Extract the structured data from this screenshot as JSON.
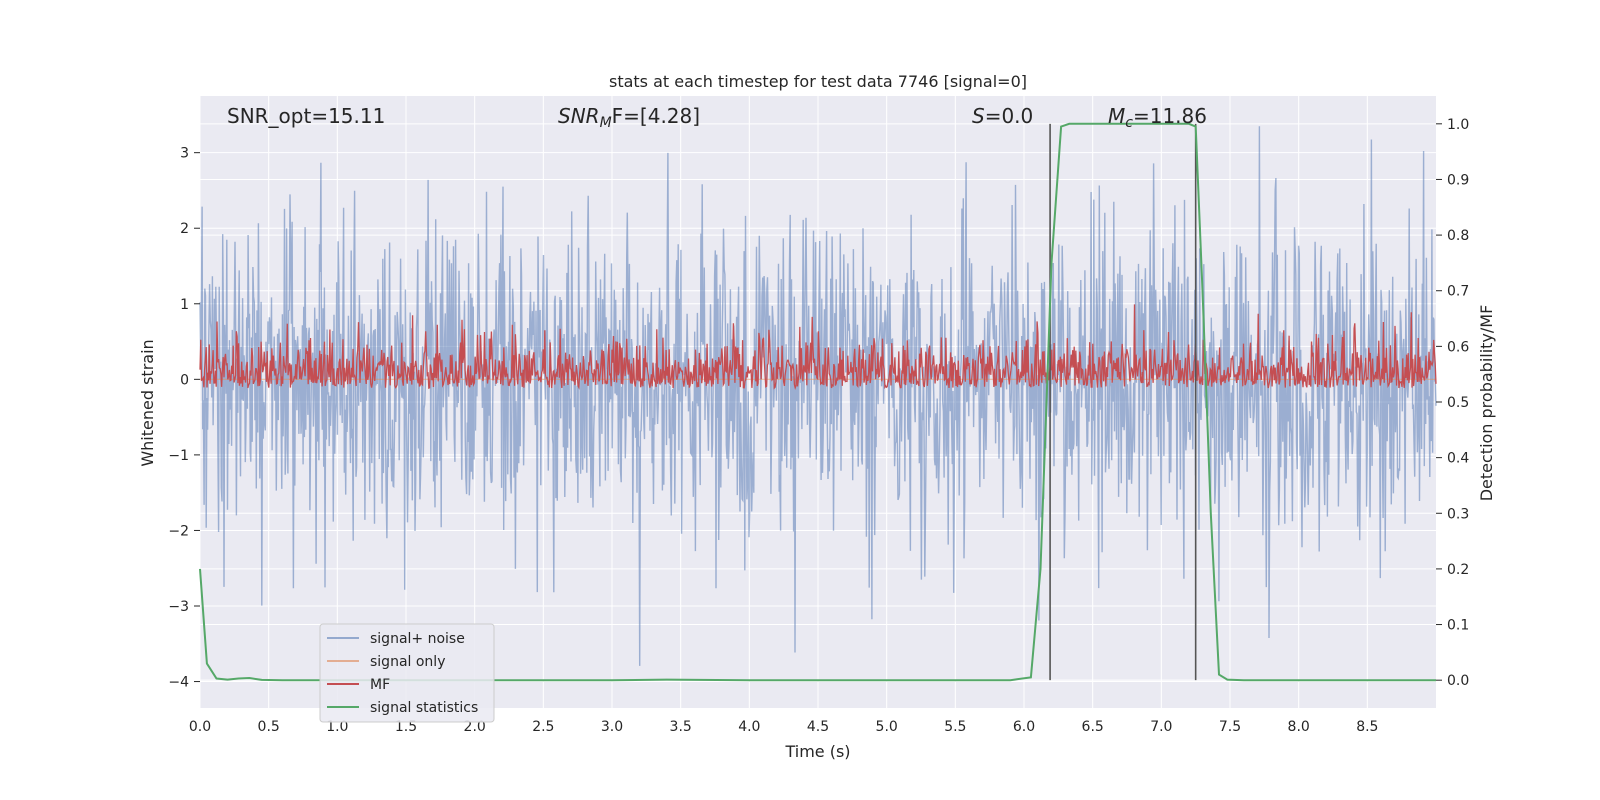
{
  "chart_data": {
    "type": "line",
    "title": "stats at each timestep for test data 7746 [signal=0]",
    "xlabel": "Time (s)",
    "ylabel_left": "Whitened strain",
    "ylabel_right": "Detection probability/MF",
    "xlim": [
      0.0,
      9.0
    ],
    "ylim_left": [
      -4.35,
      3.75
    ],
    "ylim_right": [
      -0.05,
      1.05
    ],
    "x_ticks": [
      0.0,
      0.5,
      1.0,
      1.5,
      2.0,
      2.5,
      3.0,
      3.5,
      4.0,
      4.5,
      5.0,
      5.5,
      6.0,
      6.5,
      7.0,
      7.5,
      8.0,
      8.5
    ],
    "x_tick_labels": [
      "0.0",
      "0.5",
      "1.0",
      "1.5",
      "2.0",
      "2.5",
      "3.0",
      "3.5",
      "4.0",
      "4.5",
      "5.0",
      "5.5",
      "6.0",
      "6.5",
      "7.0",
      "7.5",
      "8.0",
      "8.5"
    ],
    "y_left_ticks": [
      3,
      2,
      1,
      0,
      -1,
      -2,
      -3,
      -4
    ],
    "y_left_tick_labels": [
      "3",
      "2",
      "1",
      "0",
      "−1",
      "−2",
      "−3",
      "−4"
    ],
    "y_right_ticks": [
      1.0,
      0.9,
      0.8,
      0.7,
      0.6,
      0.5,
      0.4,
      0.3,
      0.2,
      0.1,
      0.0
    ],
    "y_right_tick_labels": [
      "1.0",
      "0.9",
      "0.8",
      "0.7",
      "0.6",
      "0.5",
      "0.4",
      "0.3",
      "0.2",
      "0.1",
      "0.0"
    ],
    "annotations": {
      "snr_opt": "SNR_opt=15.11",
      "snr_mf_base": "SNR",
      "snr_mf_sub": "M",
      "snr_mf_rest": "F=[4.28]",
      "s_var": "S",
      "s_rest": "=0.0",
      "mc_var": "M",
      "mc_sub": "c",
      "mc_rest": "=11.86"
    },
    "vertical_lines_x": [
      6.19,
      7.25
    ],
    "legend": [
      "signal+ noise",
      "signal only",
      "MF",
      "signal statistics"
    ],
    "legend_location": "lower-left",
    "series": [
      {
        "name": "signal+ noise",
        "axis": "left",
        "color": "#4c72b0",
        "description": "white noise, approx sigma 1, range -3.9 to 3.4 over 0-9 s"
      },
      {
        "name": "signal only",
        "axis": "left",
        "color": "#dd8452",
        "values": "flat zero"
      },
      {
        "name": "MF",
        "axis": "right",
        "color": "#c44e52",
        "description": "matched filter output fluctuating ~0.52-0.64, peaks near 0.68"
      },
      {
        "name": "signal statistics",
        "axis": "right",
        "color": "#55a868",
        "x": [
          0.0,
          0.05,
          0.12,
          0.2,
          0.28,
          0.36,
          0.45,
          0.6,
          1.0,
          2.0,
          3.0,
          3.4,
          4.0,
          5.0,
          5.5,
          5.9,
          6.05,
          6.12,
          6.2,
          6.27,
          6.33,
          6.5,
          7.0,
          7.2,
          7.25,
          7.3,
          7.36,
          7.42,
          7.48,
          7.6,
          8.0,
          8.5,
          9.0
        ],
        "values": [
          0.2,
          0.03,
          0.003,
          0.001,
          0.003,
          0.004,
          0.0005,
          0.0,
          0.0,
          0.0,
          0.0,
          0.001,
          0.0,
          0.0,
          0.0,
          0.0,
          0.005,
          0.2,
          0.75,
          0.995,
          1.0,
          1.0,
          1.0,
          1.0,
          0.995,
          0.7,
          0.3,
          0.01,
          0.001,
          0.0,
          0.0,
          0.0,
          0.0
        ]
      }
    ],
    "colors": {
      "plot_background": "#eaeaf2",
      "grid": "#ffffff",
      "vline": "#555555",
      "legend_bg": "#eaeaf2"
    }
  }
}
